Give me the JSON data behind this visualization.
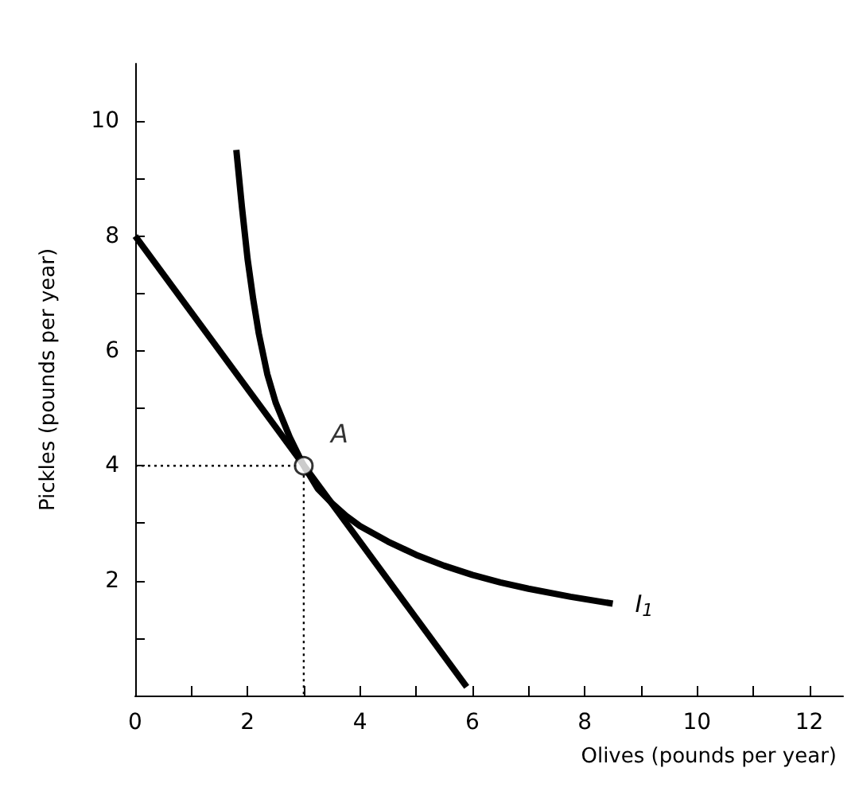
{
  "chart_data": {
    "type": "line",
    "xlabel": "Olives (pounds per year)",
    "ylabel": "Pickles (pounds per year)",
    "xlim": [
      0,
      12.6
    ],
    "ylim": [
      0,
      11
    ],
    "xticks": [
      0,
      {
        "value": 1,
        "label": null
      },
      2,
      {
        "value": 3,
        "label": null
      },
      4,
      {
        "value": 5,
        "label": null
      },
      6,
      {
        "value": 7,
        "label": null
      },
      8,
      {
        "value": 9,
        "label": null
      },
      10,
      {
        "value": 11,
        "label": null
      },
      12
    ],
    "yticks": [
      {
        "value": 1,
        "label": null
      },
      2,
      {
        "value": 3,
        "label": null
      },
      4,
      {
        "value": 5,
        "label": null
      },
      6,
      {
        "value": 7,
        "label": null
      },
      8,
      {
        "value": 9,
        "label": null
      },
      10
    ],
    "grid": false,
    "legend": false,
    "annotations": [
      {
        "text": "A",
        "x": 3,
        "y": 4
      }
    ],
    "series": [
      {
        "color": "#000000",
        "line_style": "dotted",
        "marker": "none",
        "x": [
          0,
          3,
          3
        ],
        "values": [
          4,
          4,
          0
        ]
      },
      {
        "color": "#000000",
        "line_style": "solid",
        "marker": "none",
        "x": [
          0,
          5.9
        ],
        "values": [
          8,
          0.15
        ]
      },
      {
        "name": "I$_{1}$",
        "color": "#000000",
        "line_style": "solid",
        "marker": "none",
        "x": [
          1.8,
          1.9,
          2.0,
          2.1,
          2.2,
          2.35,
          2.5,
          2.75,
          3,
          3.25,
          3.5,
          3.75,
          4,
          4.5,
          5,
          5.5,
          6,
          6.5,
          7,
          7.75,
          8.5
        ],
        "values": [
          9.5,
          8.5,
          7.6,
          6.9,
          6.3,
          5.6,
          5.1,
          4.5,
          4,
          3.6,
          3.35,
          3.13,
          2.95,
          2.68,
          2.45,
          2.26,
          2.1,
          1.97,
          1.86,
          1.72,
          1.6
        ]
      },
      {
        "type": "scatter",
        "color": "#000000",
        "marker": "circle",
        "x": [
          3
        ],
        "values": [
          4
        ]
      }
    ]
  }
}
